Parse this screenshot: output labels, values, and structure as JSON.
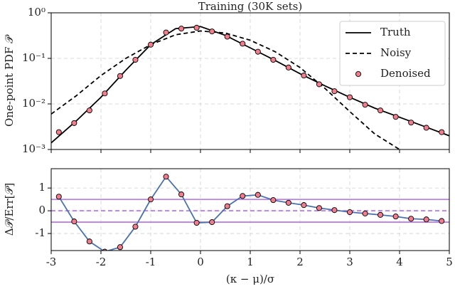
{
  "chart_data": [
    {
      "type": "line",
      "title": "Training (30K sets)",
      "ylabel": "One-point PDF 𝒫",
      "log_y": true,
      "grid": true,
      "xlim": [
        -3,
        5
      ],
      "xticks": [
        -3,
        -2,
        -1,
        0,
        1,
        2,
        3,
        4,
        5
      ],
      "ylim": [
        0.001,
        1
      ],
      "yticks": [
        {
          "value": 0.001,
          "label": "10⁻³"
        },
        {
          "value": 0.01,
          "label": "10⁻²"
        },
        {
          "value": 0.1,
          "label": "10⁻¹"
        },
        {
          "value": 1,
          "label": "10⁰"
        }
      ],
      "legend": "upper right",
      "series": [
        {
          "name": "Truth",
          "style": "solid",
          "color": "#000000",
          "x": [
            -3,
            -2.5,
            -2,
            -1.5,
            -1,
            -0.5,
            0,
            0.5,
            1,
            1.5,
            2,
            2.5,
            3,
            3.5,
            4,
            4.5,
            5
          ],
          "values": [
            0.0014,
            0.0042,
            0.014,
            0.055,
            0.2,
            0.45,
            0.5,
            0.32,
            0.17,
            0.09,
            0.046,
            0.025,
            0.014,
            0.0081,
            0.0051,
            0.0032,
            0.002
          ]
        },
        {
          "name": "Noisy",
          "style": "dashed",
          "color": "#000000",
          "x": [
            -3,
            -2.5,
            -2,
            -1.5,
            -1,
            -0.5,
            0,
            0.5,
            1,
            1.5,
            2,
            2.5,
            3,
            3.5,
            4
          ],
          "values": [
            0.006,
            0.015,
            0.042,
            0.1,
            0.2,
            0.33,
            0.4,
            0.36,
            0.25,
            0.14,
            0.063,
            0.022,
            0.0068,
            0.0022,
            0.001
          ]
        },
        {
          "name": "Denoised",
          "style": "markers",
          "color": "#f07c8c",
          "x": [
            -2.846,
            -2.538,
            -2.231,
            -1.923,
            -1.615,
            -1.308,
            -1.0,
            -0.692,
            -0.385,
            -0.077,
            0.231,
            0.538,
            0.846,
            1.154,
            1.462,
            1.769,
            2.077,
            2.385,
            2.692,
            3.0,
            3.308,
            3.615,
            3.923,
            4.231,
            4.538,
            4.846
          ],
          "values": [
            0.0024,
            0.0038,
            0.0072,
            0.017,
            0.041,
            0.093,
            0.2,
            0.37,
            0.45,
            0.47,
            0.39,
            0.3,
            0.21,
            0.14,
            0.093,
            0.063,
            0.042,
            0.027,
            0.019,
            0.014,
            0.0096,
            0.0072,
            0.0052,
            0.0039,
            0.003,
            0.0024
          ]
        }
      ]
    },
    {
      "type": "line",
      "ylabel": "Δ𝒫/Err[𝒫]",
      "xlabel": "(κ − μ)/σ",
      "log_y": false,
      "grid": true,
      "xlim": [
        -3,
        5
      ],
      "xticks": [
        -3,
        -2,
        -1,
        0,
        1,
        2,
        3,
        4,
        5
      ],
      "ylim": [
        -1.75,
        1.85
      ],
      "yticks": [
        -1,
        0,
        1
      ],
      "reference_lines": [
        -0.5,
        0,
        0.5
      ],
      "reference_color": "#b36cf0",
      "series": [
        {
          "style": "line-markers",
          "color": "#4a72b0",
          "marker_color": "#f07c8c",
          "x": [
            -2.846,
            -2.538,
            -2.231,
            -1.923,
            -1.615,
            -1.308,
            -1.0,
            -0.692,
            -0.385,
            -0.077,
            0.231,
            0.538,
            0.846,
            1.154,
            1.462,
            1.769,
            2.077,
            2.385,
            2.692,
            3.0,
            3.308,
            3.615,
            3.923,
            4.231,
            4.538,
            4.846
          ],
          "values": [
            0.62,
            -0.47,
            -1.35,
            -1.8,
            -1.6,
            -0.7,
            0.5,
            1.5,
            0.72,
            -0.53,
            -0.5,
            0.2,
            0.65,
            0.7,
            0.47,
            0.35,
            0.25,
            0.12,
            0.03,
            -0.06,
            -0.12,
            -0.18,
            -0.25,
            -0.35,
            -0.38,
            -0.45
          ]
        }
      ]
    }
  ]
}
